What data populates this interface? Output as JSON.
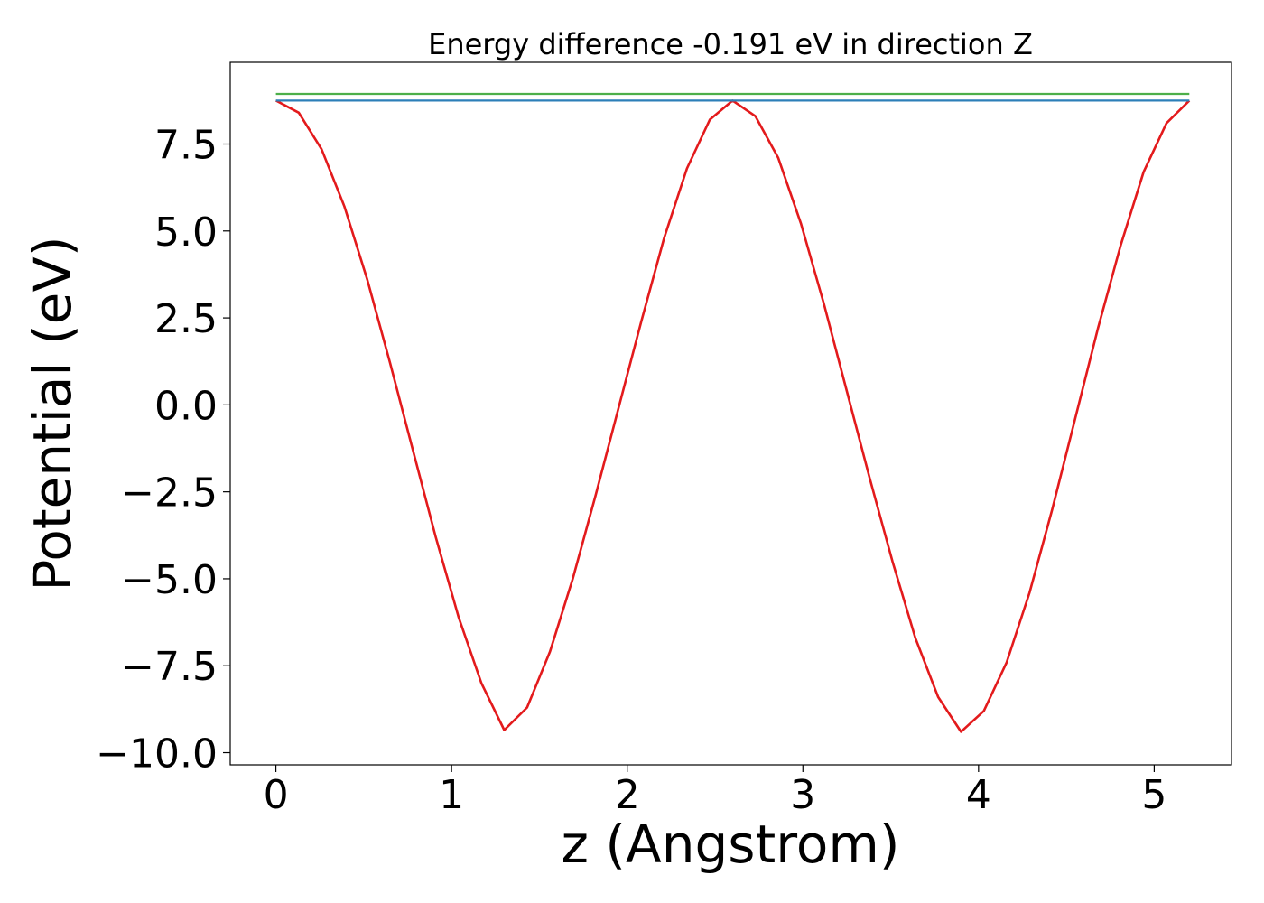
{
  "chart_data": {
    "type": "line",
    "title": "Energy difference -0.191 eV in direction Z",
    "xlabel": "z (Angstrom)",
    "ylabel": "Potential (eV)",
    "xlim": [
      -0.26,
      5.44
    ],
    "ylim": [
      -10.35,
      9.85
    ],
    "x_ticks": [
      0,
      1,
      2,
      3,
      4,
      5
    ],
    "x_tick_labels": [
      "0",
      "1",
      "2",
      "3",
      "4",
      "5"
    ],
    "y_ticks": [
      7.5,
      5.0,
      2.5,
      0.0,
      -2.5,
      -5.0,
      -7.5,
      -10.0
    ],
    "y_tick_labels": [
      "7.5",
      "5.0",
      "2.5",
      "0.0",
      "−2.5",
      "−5.0",
      "−7.5",
      "−10.0"
    ],
    "grid": false,
    "legend": "none",
    "series": [
      {
        "color": "#e31a1c",
        "kind": "curve",
        "x": [
          0.0,
          0.13,
          0.26,
          0.39,
          0.52,
          0.65,
          0.78,
          0.91,
          1.04,
          1.17,
          1.3,
          1.43,
          1.56,
          1.69,
          1.82,
          1.95,
          2.08,
          2.21,
          2.34,
          2.47,
          2.6,
          2.73,
          2.86,
          2.99,
          3.12,
          3.25,
          3.38,
          3.51,
          3.64,
          3.77,
          3.9,
          4.03,
          4.16,
          4.29,
          4.42,
          4.55,
          4.68,
          4.81,
          4.94,
          5.07,
          5.2
        ],
        "y": [
          8.75,
          8.4,
          7.35,
          5.7,
          3.6,
          1.2,
          -1.3,
          -3.8,
          -6.1,
          -8.0,
          -9.35,
          -8.7,
          -7.1,
          -5.0,
          -2.6,
          -0.1,
          2.4,
          4.8,
          6.8,
          8.2,
          8.75,
          8.3,
          7.1,
          5.2,
          2.9,
          0.4,
          -2.1,
          -4.5,
          -6.7,
          -8.4,
          -9.4,
          -8.8,
          -7.4,
          -5.4,
          -3.0,
          -0.4,
          2.2,
          4.6,
          6.7,
          8.1,
          8.75
        ]
      },
      {
        "color": "#2c7fb8",
        "kind": "flat",
        "x": [
          0.0,
          5.2
        ],
        "y": [
          8.75,
          8.75
        ]
      },
      {
        "color": "#4daf4a",
        "kind": "flat",
        "x": [
          0.0,
          5.2
        ],
        "y": [
          8.94,
          8.94
        ]
      }
    ]
  }
}
